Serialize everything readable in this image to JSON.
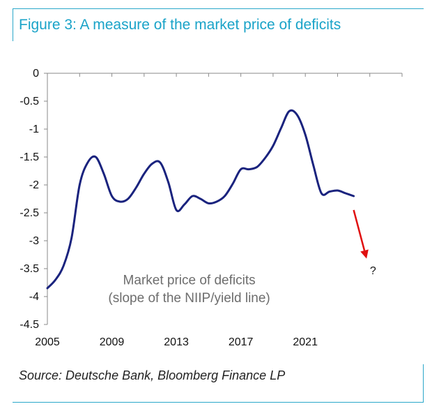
{
  "title": "Figure 3: A measure of the market price of deficits",
  "source": "Source: Deutsche Bank, Bloomberg Finance LP",
  "colors": {
    "accent": "#1aa3c8",
    "line": "#1a237e",
    "arrow": "#e01010"
  },
  "chart_data": {
    "type": "line",
    "title": "Figure 3: A measure of the market price of deficits",
    "xlabel": "",
    "ylabel": "",
    "xlim": [
      2005,
      2027
    ],
    "ylim": [
      -4.5,
      0
    ],
    "yticks": [
      0,
      -0.5,
      -1,
      -1.5,
      -2,
      -2.5,
      -3,
      -3.5,
      -4,
      -4.5
    ],
    "ytick_labels": [
      "0",
      "-0.5",
      "-1",
      "-1.5",
      "-2",
      "-2.5",
      "-3",
      "-3.5",
      "-4",
      "-4.5"
    ],
    "xtick_labels": [
      "2005",
      "2009",
      "2013",
      "2017",
      "2021"
    ],
    "xticks": [
      2005,
      2009,
      2013,
      2017,
      2021
    ],
    "series": [
      {
        "name": "Market price of deficits (slope of the NIIP/yield line)",
        "x": [
          2005.0,
          2005.5,
          2006.0,
          2006.5,
          2007.0,
          2007.5,
          2008.0,
          2008.5,
          2009.0,
          2009.5,
          2010.0,
          2010.5,
          2011.0,
          2011.5,
          2012.0,
          2012.5,
          2013.0,
          2013.5,
          2014.0,
          2014.5,
          2015.0,
          2015.5,
          2016.0,
          2016.5,
          2017.0,
          2017.5,
          2018.0,
          2018.5,
          2019.0,
          2019.5,
          2020.0,
          2020.5,
          2021.0,
          2021.5,
          2022.0,
          2022.5,
          2023.0,
          2023.5,
          2024.0
        ],
        "y": [
          -3.85,
          -3.7,
          -3.45,
          -2.95,
          -2.0,
          -1.6,
          -1.5,
          -1.8,
          -2.2,
          -2.3,
          -2.25,
          -2.05,
          -1.8,
          -1.62,
          -1.6,
          -1.95,
          -2.45,
          -2.35,
          -2.2,
          -2.25,
          -2.33,
          -2.3,
          -2.2,
          -1.98,
          -1.72,
          -1.72,
          -1.68,
          -1.52,
          -1.3,
          -0.98,
          -0.68,
          -0.75,
          -1.1,
          -1.65,
          -2.15,
          -2.12,
          -2.1,
          -2.15,
          -2.2
        ]
      }
    ],
    "annotations": [
      {
        "text": "Market price of deficits",
        "x": 2013.8,
        "y": -3.78
      },
      {
        "text": "(slope of the NIIP/yield line)",
        "x": 2013.8,
        "y": -4.1
      },
      {
        "text": "?",
        "x": 2025.2,
        "y": -3.6
      }
    ],
    "arrow": {
      "from": [
        2024.0,
        -2.45
      ],
      "to": [
        2024.8,
        -3.32
      ]
    },
    "grid": false,
    "legend": "none"
  }
}
